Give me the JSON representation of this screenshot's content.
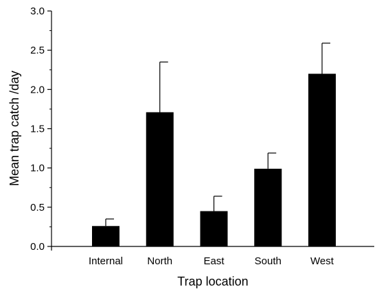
{
  "chart_data": {
    "type": "bar",
    "title": "",
    "xlabel": "Trap location",
    "ylabel": "Mean trap catch /day",
    "categories": [
      "Internal",
      "North",
      "East",
      "South",
      "West"
    ],
    "values": [
      0.26,
      1.71,
      0.45,
      0.99,
      2.2
    ],
    "error_upper": [
      0.09,
      0.64,
      0.19,
      0.2,
      0.39
    ],
    "ylim": [
      0,
      3.0
    ],
    "yticks": [
      "0.0",
      "0.5",
      "1.0",
      "1.5",
      "2.0",
      "2.5",
      "3.0"
    ],
    "grid": false,
    "legend": "none",
    "bar_color": "#000000"
  }
}
